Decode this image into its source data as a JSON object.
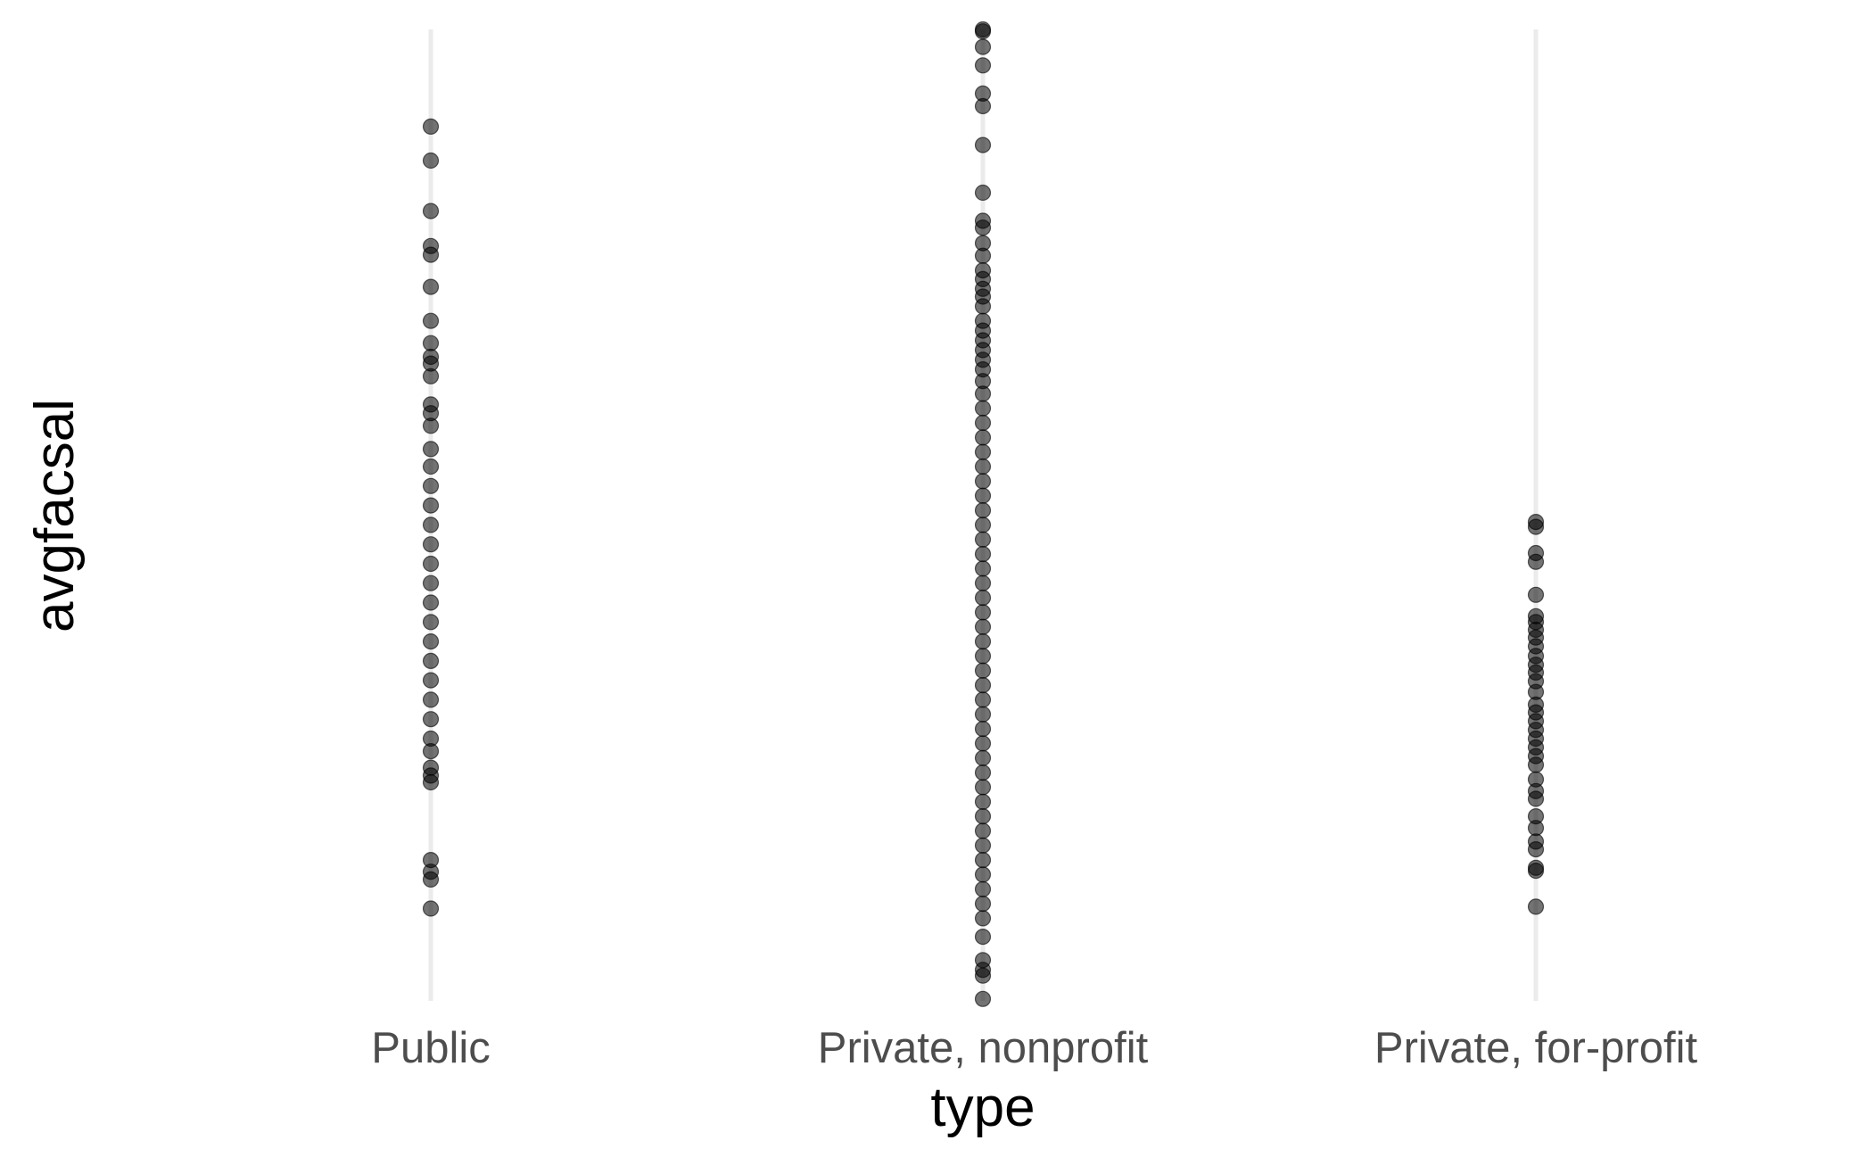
{
  "chart_data": {
    "type": "scatter",
    "title": "",
    "xlabel": "type",
    "ylabel": "avgfacsal",
    "categories": [
      "Public",
      "Private, nonprofit",
      "Private, for-profit"
    ],
    "y_tick_labels_shown": false,
    "grid": "vertical major gridlines only",
    "legend": "none",
    "point_color": "#000000",
    "point_alpha": 0.55,
    "gridline_color": "#ebebeb",
    "background": "#ffffff",
    "ylim": [
      0,
      100
    ],
    "series": [
      {
        "category": "Public",
        "values": [
          90.0,
          86.5,
          81.3,
          77.7,
          76.8,
          73.5,
          70.0,
          67.7,
          66.3,
          65.6,
          64.3,
          61.4,
          60.5,
          59.2,
          56.8,
          55.0,
          53.0,
          51.0,
          49.0,
          47.0,
          45.0,
          43.0,
          41.0,
          39.0,
          37.0,
          35.0,
          33.0,
          31.0,
          29.0,
          27.0,
          25.7,
          24.0,
          23.2,
          22.5,
          14.5,
          13.3,
          12.5,
          9.5
        ]
      },
      {
        "category": "Private, nonprofit",
        "values": [
          100.0,
          99.8,
          98.2,
          96.3,
          93.4,
          92.1,
          88.1,
          83.2,
          80.3,
          79.6,
          78.0,
          76.7,
          75.2,
          74.3,
          73.3,
          72.5,
          71.5,
          70.0,
          69.0,
          68.0,
          67.0,
          66.0,
          65.0,
          63.8,
          62.5,
          61.0,
          59.5,
          58.0,
          56.5,
          55.0,
          53.5,
          52.0,
          50.5,
          49.0,
          47.5,
          46.0,
          44.5,
          43.0,
          41.5,
          40.0,
          38.5,
          37.0,
          35.5,
          34.0,
          32.5,
          31.0,
          29.5,
          28.0,
          26.5,
          25.0,
          23.5,
          22.0,
          20.5,
          19.0,
          17.5,
          16.0,
          14.5,
          13.0,
          11.5,
          10.0,
          8.5,
          6.6,
          4.2,
          3.2,
          2.6,
          0.2
        ]
      },
      {
        "category": "Private, for-profit",
        "values": [
          49.3,
          48.8,
          46.1,
          45.2,
          41.8,
          39.6,
          39.0,
          38.2,
          37.4,
          36.5,
          35.5,
          34.6,
          33.8,
          32.9,
          31.8,
          30.5,
          29.7,
          28.8,
          27.9,
          27.0,
          26.1,
          25.2,
          24.3,
          22.8,
          21.6,
          20.8,
          19.0,
          17.8,
          16.4,
          15.6,
          13.7,
          13.4,
          9.7
        ]
      }
    ]
  }
}
